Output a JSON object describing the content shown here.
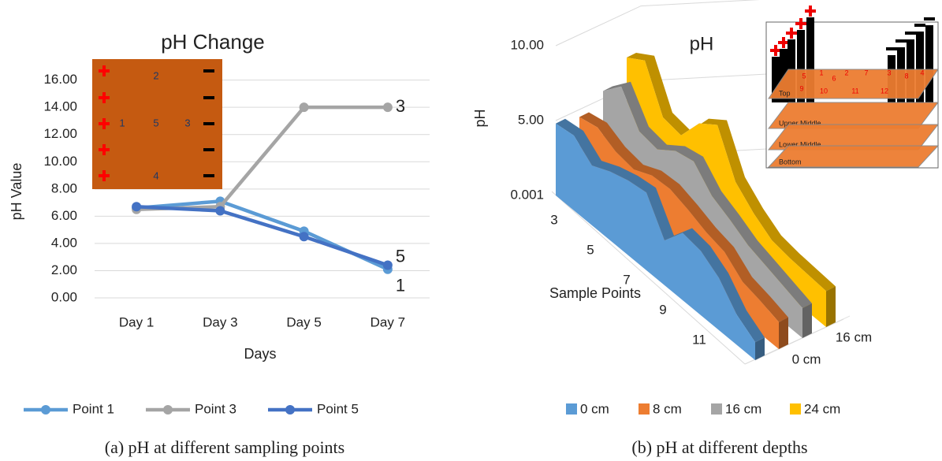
{
  "chart_data": [
    {
      "type": "line",
      "title": "pH Change",
      "x_label": "Days",
      "y_label": "pH Value",
      "caption": "(a) pH at different sampling points",
      "categories": [
        "Day 1",
        "Day 3",
        "Day 5",
        "Day 7"
      ],
      "series": [
        {
          "name": "Point 1",
          "color": "#5b9bd5",
          "values": [
            6.6,
            7.1,
            4.9,
            2.1
          ],
          "end_label": "1"
        },
        {
          "name": "Point 3",
          "color": "#a5a5a5",
          "values": [
            6.5,
            6.7,
            14.0,
            14.0
          ],
          "end_label": "3"
        },
        {
          "name": "Point 5",
          "color": "#4472c4",
          "values": [
            6.7,
            6.4,
            4.5,
            2.4
          ],
          "end_label": "5"
        }
      ],
      "ylim": [
        0,
        16.5
      ],
      "yticks": [
        {
          "value": 0,
          "label": "0.00"
        },
        {
          "value": 2,
          "label": "2.00"
        },
        {
          "value": 4,
          "label": "4.00"
        },
        {
          "value": 6,
          "label": "6.00"
        },
        {
          "value": 8,
          "label": "8.00"
        },
        {
          "value": 10,
          "label": "10.00"
        },
        {
          "value": 12,
          "label": "12.00"
        },
        {
          "value": 14,
          "label": "14.00"
        },
        {
          "value": 16,
          "label": "16.00"
        }
      ],
      "grid": true,
      "legend": "bottom",
      "inset": {
        "labels": [
          "2",
          "1",
          "5",
          "3",
          "4"
        ]
      }
    },
    {
      "type": "area",
      "title": "pH",
      "x_label": "Sample Points",
      "y_label": "pH",
      "caption": "(b) pH at different depths",
      "categories": [
        null,
        null,
        "3",
        null,
        "5",
        null,
        "7",
        null,
        "9",
        null,
        "11",
        null
      ],
      "depths": [
        "0 cm",
        null,
        "16 cm",
        null
      ],
      "series": [
        {
          "name": "0 cm",
          "color": "#5b9bd5",
          "values": [
            4.8,
            5.0,
            4.0,
            4.6,
            5.0,
            5.2,
            3.0,
            4.5,
            4.3,
            3.5,
            2.0,
            1.2
          ]
        },
        {
          "name": "8 cm",
          "color": "#ed7d31",
          "values": [
            4.5,
            4.8,
            4.2,
            4.0,
            4.6,
            4.7,
            4.3,
            3.8,
            3.5,
            2.5,
            2.2,
            1.8
          ]
        },
        {
          "name": "16 cm",
          "color": "#a5a5a5",
          "values": [
            5.5,
            6.8,
            4.8,
            4.6,
            5.5,
            5.8,
            4.5,
            3.9,
            3.2,
            2.8,
            2.4,
            2.0
          ]
        },
        {
          "name": "24 cm",
          "color": "#ffc000",
          "values": [
            7.0,
            7.8,
            5.0,
            4.8,
            6.6,
            7.5,
            4.7,
            3.6,
            2.8,
            2.6,
            2.5,
            2.4
          ]
        }
      ],
      "ylim": [
        0,
        10
      ],
      "yticks": [
        0.001,
        {
          "value": 5,
          "label": "5.00"
        },
        {
          "value": 10,
          "label": "10.00"
        }
      ],
      "grid": true,
      "legend": "bottom",
      "inset": {
        "numbers": [
          "5",
          "1",
          "2",
          "7",
          "3",
          "8",
          "4",
          "6",
          "9",
          "10",
          "11",
          "12"
        ],
        "layers": [
          "Top",
          "Upper Middle",
          "Lower Middle",
          "Bottom"
        ]
      }
    }
  ]
}
